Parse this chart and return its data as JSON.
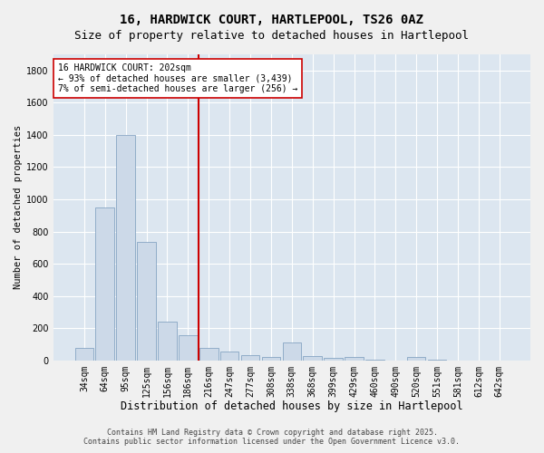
{
  "title": "16, HARDWICK COURT, HARTLEPOOL, TS26 0AZ",
  "subtitle": "Size of property relative to detached houses in Hartlepool",
  "xlabel": "Distribution of detached houses by size in Hartlepool",
  "ylabel": "Number of detached properties",
  "categories": [
    "34sqm",
    "64sqm",
    "95sqm",
    "125sqm",
    "156sqm",
    "186sqm",
    "216sqm",
    "247sqm",
    "277sqm",
    "308sqm",
    "338sqm",
    "368sqm",
    "399sqm",
    "429sqm",
    "460sqm",
    "490sqm",
    "520sqm",
    "551sqm",
    "581sqm",
    "612sqm",
    "642sqm"
  ],
  "values": [
    75,
    950,
    1400,
    735,
    240,
    155,
    80,
    55,
    30,
    20,
    110,
    25,
    15,
    20,
    5,
    0,
    20,
    5,
    0,
    0,
    0
  ],
  "bar_color": "#ccd9e8",
  "bar_edge_color": "#7799bb",
  "vline_x": 6.0,
  "vline_color": "#cc0000",
  "annotation_text": "16 HARDWICK COURT: 202sqm\n← 93% of detached houses are smaller (3,439)\n7% of semi-detached houses are larger (256) →",
  "annotation_box_color": "#ffffff",
  "annotation_box_edge": "#cc0000",
  "ylim": [
    0,
    1900
  ],
  "yticks": [
    0,
    200,
    400,
    600,
    800,
    1000,
    1200,
    1400,
    1600,
    1800
  ],
  "background_color": "#dce6f0",
  "grid_color": "#ffffff",
  "fig_bg_color": "#f0f0f0",
  "footer_line1": "Contains HM Land Registry data © Crown copyright and database right 2025.",
  "footer_line2": "Contains public sector information licensed under the Open Government Licence v3.0.",
  "title_fontsize": 10,
  "subtitle_fontsize": 9,
  "xlabel_fontsize": 8.5,
  "ylabel_fontsize": 7.5,
  "tick_fontsize": 7,
  "annotation_fontsize": 7,
  "footer_fontsize": 6
}
